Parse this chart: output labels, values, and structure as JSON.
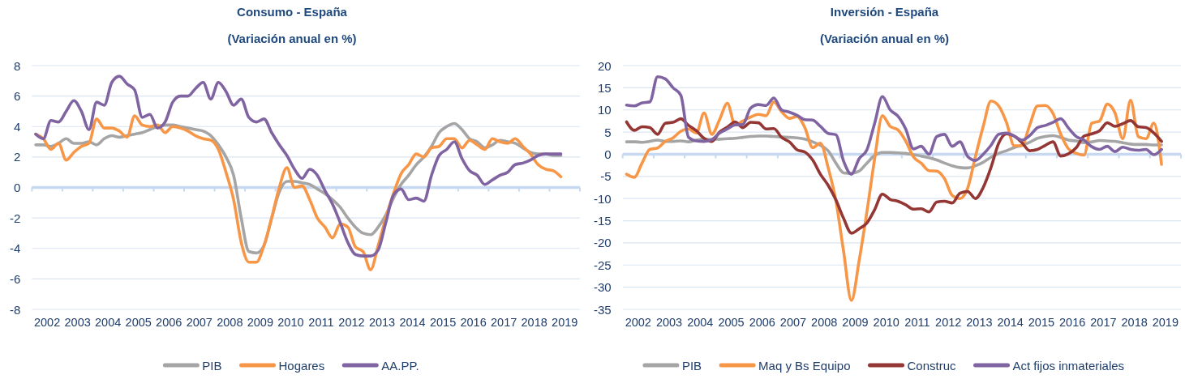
{
  "chart_data": [
    {
      "type": "line",
      "title": "Consumo - España",
      "subtitle": "(Variación anual en %)",
      "x": [
        2002.125,
        2002.375,
        2002.625,
        2002.875,
        2003.125,
        2003.375,
        2003.625,
        2003.875,
        2004.125,
        2004.375,
        2004.625,
        2004.875,
        2005.125,
        2005.375,
        2005.625,
        2005.875,
        2006.125,
        2006.375,
        2006.625,
        2006.875,
        2007.125,
        2007.375,
        2007.625,
        2007.875,
        2008.125,
        2008.375,
        2008.625,
        2008.875,
        2009.125,
        2009.375,
        2009.625,
        2009.875,
        2010.125,
        2010.375,
        2010.625,
        2010.875,
        2011.125,
        2011.375,
        2011.625,
        2011.875,
        2012.125,
        2012.375,
        2012.625,
        2012.875,
        2013.125,
        2013.375,
        2013.625,
        2013.875,
        2014.125,
        2014.375,
        2014.625,
        2014.875,
        2015.125,
        2015.375,
        2015.625,
        2015.875,
        2016.125,
        2016.375,
        2016.625,
        2016.875,
        2017.125,
        2017.375,
        2017.625,
        2017.875,
        2018.125,
        2018.375,
        2018.625,
        2018.875,
        2019.125,
        2019.375
      ],
      "xlim": [
        2002,
        2020
      ],
      "xticks": [
        {
          "value": 2002,
          "label": null
        },
        {
          "value": 2002.5,
          "label": "2002"
        },
        {
          "value": 2003,
          "label": null
        },
        {
          "value": 2003.5,
          "label": "2003"
        },
        {
          "value": 2004,
          "label": null
        },
        {
          "value": 2004.5,
          "label": "2004"
        },
        {
          "value": 2005,
          "label": null
        },
        {
          "value": 2005.5,
          "label": "2005"
        },
        {
          "value": 2006,
          "label": null
        },
        {
          "value": 2006.5,
          "label": "2006"
        },
        {
          "value": 2007,
          "label": null
        },
        {
          "value": 2007.5,
          "label": "2007"
        },
        {
          "value": 2008,
          "label": null
        },
        {
          "value": 2008.5,
          "label": "2008"
        },
        {
          "value": 2009,
          "label": null
        },
        {
          "value": 2009.5,
          "label": "2009"
        },
        {
          "value": 2010,
          "label": null
        },
        {
          "value": 2010.5,
          "label": "2010"
        },
        {
          "value": 2011,
          "label": null
        },
        {
          "value": 2011.5,
          "label": "2011"
        },
        {
          "value": 2012,
          "label": null
        },
        {
          "value": 2012.5,
          "label": "2012"
        },
        {
          "value": 2013,
          "label": null
        },
        {
          "value": 2013.5,
          "label": "2013"
        },
        {
          "value": 2014,
          "label": null
        },
        {
          "value": 2014.5,
          "label": "2014"
        },
        {
          "value": 2015,
          "label": null
        },
        {
          "value": 2015.5,
          "label": "2015"
        },
        {
          "value": 2016,
          "label": null
        },
        {
          "value": 2016.5,
          "label": "2016"
        },
        {
          "value": 2017,
          "label": null
        },
        {
          "value": 2017.5,
          "label": "2017"
        },
        {
          "value": 2018,
          "label": null
        },
        {
          "value": 2018.5,
          "label": "2018"
        },
        {
          "value": 2019,
          "label": null
        },
        {
          "value": 2019.5,
          "label": "2019"
        },
        {
          "value": 2020,
          "label": null
        }
      ],
      "ylim": [
        -8,
        8
      ],
      "yticks": [
        -8,
        -6,
        -4,
        -2,
        0,
        2,
        4,
        6,
        8
      ],
      "grid": "y",
      "legend": "bottom",
      "ref_lines": [
        {
          "axis": "y",
          "value": 0,
          "color": "#c6d9f1"
        }
      ],
      "series": [
        {
          "name": "PIB",
          "color": "#a5a5a5",
          "values": [
            2.8,
            2.8,
            2.7,
            2.9,
            3.2,
            2.9,
            2.9,
            3.0,
            2.8,
            3.2,
            3.4,
            3.3,
            3.4,
            3.5,
            3.6,
            3.8,
            4.0,
            4.1,
            4.1,
            4.0,
            3.9,
            3.8,
            3.7,
            3.4,
            2.8,
            2.0,
            0.8,
            -2.0,
            -4.2,
            -4.3,
            -3.8,
            -2.0,
            -0.3,
            0.4,
            0.4,
            0.3,
            0.2,
            -0.1,
            -0.4,
            -0.8,
            -1.3,
            -2.0,
            -2.6,
            -3.0,
            -3.1,
            -2.6,
            -1.8,
            -0.7,
            0.2,
            0.8,
            1.5,
            2.0,
            2.7,
            3.6,
            4.0,
            4.2,
            3.8,
            3.2,
            3.0,
            2.6,
            2.8,
            3.1,
            3.0,
            2.9,
            2.6,
            2.3,
            2.2,
            2.2,
            2.1,
            2.1
          ]
        },
        {
          "name": "Hogares",
          "color": "#f79646",
          "values": [
            3.5,
            3.2,
            2.5,
            2.9,
            1.8,
            2.3,
            2.7,
            2.9,
            4.5,
            3.9,
            3.9,
            3.7,
            3.3,
            4.7,
            4.1,
            4.0,
            4.1,
            3.6,
            4.0,
            3.9,
            3.7,
            3.4,
            3.2,
            3.1,
            2.5,
            1.0,
            -0.8,
            -3.6,
            -4.9,
            -4.9,
            -3.8,
            -2.0,
            0.0,
            1.3,
            0.0,
            0.1,
            -0.8,
            -2.0,
            -2.6,
            -3.3,
            -2.4,
            -2.6,
            -3.9,
            -4.2,
            -5.4,
            -3.8,
            -2.0,
            -0.4,
            0.9,
            1.5,
            2.2,
            2.0,
            2.6,
            2.7,
            3.2,
            3.2,
            2.6,
            3.1,
            2.8,
            2.5,
            3.2,
            3.0,
            2.9,
            3.2,
            2.7,
            2.2,
            1.5,
            1.2,
            1.1,
            0.7
          ]
        },
        {
          "name": "AA.PP.",
          "color": "#8064a2",
          "values": [
            3.5,
            3.2,
            4.4,
            4.3,
            5.0,
            5.7,
            5.0,
            3.8,
            5.6,
            5.4,
            6.9,
            7.3,
            6.8,
            6.4,
            4.6,
            4.8,
            3.9,
            4.3,
            5.6,
            6.0,
            6.0,
            6.5,
            6.9,
            5.8,
            6.9,
            6.3,
            5.4,
            5.8,
            4.6,
            4.3,
            4.5,
            3.6,
            2.8,
            2.1,
            1.2,
            0.6,
            1.2,
            0.8,
            -0.2,
            -1.1,
            -2.3,
            -3.6,
            -4.4,
            -4.5,
            -4.5,
            -4.1,
            -2.3,
            -0.5,
            -0.1,
            -0.8,
            -0.7,
            -0.9,
            0.8,
            2.1,
            2.5,
            3.0,
            1.9,
            1.1,
            0.8,
            0.2,
            0.5,
            0.8,
            1.0,
            1.5,
            1.6,
            1.8,
            2.1,
            2.2,
            2.2,
            2.2
          ]
        }
      ]
    },
    {
      "type": "line",
      "title": "Inversión - España",
      "subtitle": "(Variación anual en %)",
      "x": [
        2002.125,
        2002.375,
        2002.625,
        2002.875,
        2003.125,
        2003.375,
        2003.625,
        2003.875,
        2004.125,
        2004.375,
        2004.625,
        2004.875,
        2005.125,
        2005.375,
        2005.625,
        2005.875,
        2006.125,
        2006.375,
        2006.625,
        2006.875,
        2007.125,
        2007.375,
        2007.625,
        2007.875,
        2008.125,
        2008.375,
        2008.625,
        2008.875,
        2009.125,
        2009.375,
        2009.625,
        2009.875,
        2010.125,
        2010.375,
        2010.625,
        2010.875,
        2011.125,
        2011.375,
        2011.625,
        2011.875,
        2012.125,
        2012.375,
        2012.625,
        2012.875,
        2013.125,
        2013.375,
        2013.625,
        2013.875,
        2014.125,
        2014.375,
        2014.625,
        2014.875,
        2015.125,
        2015.375,
        2015.625,
        2015.875,
        2016.125,
        2016.375,
        2016.625,
        2016.875,
        2017.125,
        2017.375,
        2017.625,
        2017.875,
        2018.125,
        2018.375,
        2018.625,
        2018.875,
        2019.125,
        2019.375
      ],
      "xlim": [
        2002,
        2020
      ],
      "xticks": [
        {
          "value": 2002,
          "label": null
        },
        {
          "value": 2002.5,
          "label": "2002"
        },
        {
          "value": 2003,
          "label": null
        },
        {
          "value": 2003.5,
          "label": "2003"
        },
        {
          "value": 2004,
          "label": null
        },
        {
          "value": 2004.5,
          "label": "2004"
        },
        {
          "value": 2005,
          "label": null
        },
        {
          "value": 2005.5,
          "label": "2005"
        },
        {
          "value": 2006,
          "label": null
        },
        {
          "value": 2006.5,
          "label": "2006"
        },
        {
          "value": 2007,
          "label": null
        },
        {
          "value": 2007.5,
          "label": "2007"
        },
        {
          "value": 2008,
          "label": null
        },
        {
          "value": 2008.5,
          "label": "2008"
        },
        {
          "value": 2009,
          "label": null
        },
        {
          "value": 2009.5,
          "label": "2009"
        },
        {
          "value": 2010,
          "label": null
        },
        {
          "value": 2010.5,
          "label": "2010"
        },
        {
          "value": 2011,
          "label": null
        },
        {
          "value": 2011.5,
          "label": "2011"
        },
        {
          "value": 2012,
          "label": null
        },
        {
          "value": 2012.5,
          "label": "2012"
        },
        {
          "value": 2013,
          "label": null
        },
        {
          "value": 2013.5,
          "label": "2013"
        },
        {
          "value": 2014,
          "label": null
        },
        {
          "value": 2014.5,
          "label": "2014"
        },
        {
          "value": 2015,
          "label": null
        },
        {
          "value": 2015.5,
          "label": "2015"
        },
        {
          "value": 2016,
          "label": null
        },
        {
          "value": 2016.5,
          "label": "2016"
        },
        {
          "value": 2017,
          "label": null
        },
        {
          "value": 2017.5,
          "label": "2017"
        },
        {
          "value": 2018,
          "label": null
        },
        {
          "value": 2018.5,
          "label": "2018"
        },
        {
          "value": 2019,
          "label": null
        },
        {
          "value": 2019.5,
          "label": "2019"
        },
        {
          "value": 2020,
          "label": null
        }
      ],
      "ylim": [
        -35,
        20
      ],
      "yticks": [
        -35,
        -30,
        -25,
        -20,
        -15,
        -10,
        -5,
        0,
        5,
        10,
        15,
        20
      ],
      "grid": "y",
      "legend": "bottom",
      "ref_lines": [
        {
          "axis": "y",
          "value": 0,
          "color": "#c6d9f1"
        }
      ],
      "series": [
        {
          "name": "PIB",
          "color": "#a5a5a5",
          "values": [
            2.8,
            2.8,
            2.7,
            2.9,
            3.2,
            2.9,
            2.9,
            3.0,
            2.8,
            3.2,
            3.4,
            3.3,
            3.4,
            3.5,
            3.6,
            3.8,
            4.0,
            4.1,
            4.1,
            4.0,
            3.9,
            3.8,
            3.7,
            3.4,
            2.8,
            2.0,
            0.8,
            -2.0,
            -4.2,
            -4.3,
            -3.8,
            -2.0,
            -0.3,
            0.4,
            0.4,
            0.3,
            0.2,
            -0.1,
            -0.4,
            -0.8,
            -1.3,
            -2.0,
            -2.6,
            -3.0,
            -3.1,
            -2.6,
            -1.8,
            -0.7,
            0.2,
            0.8,
            1.5,
            2.0,
            2.7,
            3.6,
            4.0,
            4.2,
            3.8,
            3.2,
            3.0,
            2.6,
            2.8,
            3.1,
            3.0,
            2.9,
            2.6,
            2.3,
            2.2,
            2.2,
            2.1,
            2.1
          ]
        },
        {
          "name": "Maq y Bs Equipo",
          "color": "#f79646",
          "values": [
            -4.5,
            -5.2,
            -2.0,
            1.1,
            1.4,
            2.9,
            3.7,
            5.2,
            5.7,
            4.8,
            9.3,
            4.5,
            7.8,
            11.5,
            6.6,
            7.5,
            8.4,
            9.0,
            8.7,
            11.8,
            9.6,
            8.1,
            8.5,
            6.0,
            1.5,
            2.5,
            -3.0,
            -10.5,
            -22.0,
            -33.0,
            -24.0,
            -13.0,
            -1.0,
            8.7,
            6.3,
            5.5,
            3.0,
            -0.6,
            -2.0,
            -3.7,
            -3.8,
            -5.5,
            -9.3,
            -10.0,
            -7.6,
            -0.5,
            6.3,
            12.0,
            10.9,
            7.2,
            1.9,
            2.0,
            6.6,
            10.9,
            11.0,
            9.2,
            4.5,
            1.2,
            0.2,
            -0.2,
            7.0,
            7.5,
            11.3,
            9.3,
            3.5,
            12.2,
            4.0,
            3.5,
            7.0,
            -2.3
          ]
        },
        {
          "name": "Construc",
          "color": "#943634",
          "values": [
            7.3,
            5.4,
            6.2,
            6.0,
            4.5,
            7.0,
            7.2,
            8.0,
            6.5,
            5.3,
            3.6,
            2.9,
            5.0,
            6.1,
            7.3,
            6.0,
            7.2,
            7.1,
            5.7,
            5.8,
            3.8,
            2.8,
            1.0,
            0.5,
            -1.3,
            -4.5,
            -7.0,
            -10.3,
            -14.5,
            -17.8,
            -16.8,
            -15.5,
            -12.5,
            -9.0,
            -10.2,
            -10.6,
            -11.4,
            -12.4,
            -12.3,
            -13.0,
            -10.8,
            -10.6,
            -11.0,
            -8.8,
            -8.4,
            -10.0,
            -7.5,
            -3.0,
            2.5,
            4.6,
            4.1,
            2.6,
            0.8,
            1.1,
            2.0,
            2.8,
            -0.4,
            0.1,
            1.5,
            4.1,
            4.6,
            5.3,
            7.1,
            6.3,
            6.9,
            7.6,
            6.2,
            6.0,
            4.8,
            2.9
          ]
        },
        {
          "name": "Act fijos inmateriales",
          "color": "#8064a2",
          "values": [
            11.1,
            10.9,
            11.6,
            11.8,
            17.5,
            17.0,
            15.0,
            13.3,
            3.8,
            3.0,
            2.9,
            3.3,
            4.8,
            5.7,
            6.6,
            6.7,
            10.4,
            11.2,
            11.0,
            12.7,
            10.0,
            9.5,
            8.8,
            7.8,
            7.7,
            6.3,
            4.7,
            4.4,
            -1.6,
            -4.5,
            -1.0,
            1.0,
            7.0,
            13.0,
            10.0,
            8.6,
            5.7,
            1.2,
            1.8,
            0.0,
            4.0,
            4.5,
            1.8,
            2.8,
            -0.5,
            -1.4,
            0.0,
            2.0,
            4.5,
            4.8,
            4.1,
            3.2,
            4.2,
            6.0,
            6.5,
            7.2,
            8.0,
            5.9,
            4.0,
            3.2,
            1.7,
            1.1,
            1.8,
            0.6,
            1.6,
            1.1,
            0.9,
            1.1,
            -0.1,
            1.1
          ]
        }
      ]
    }
  ]
}
